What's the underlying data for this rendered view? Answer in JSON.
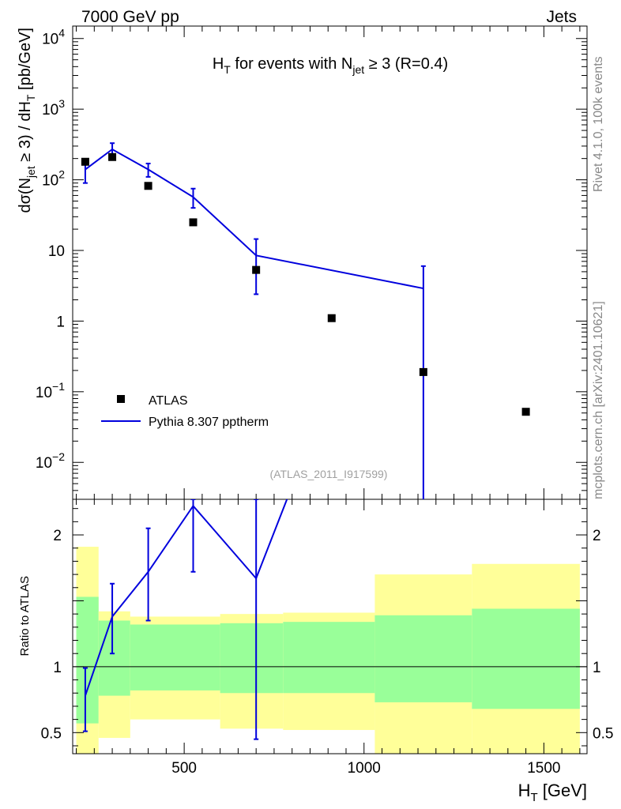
{
  "header": {
    "left": "7000 GeV pp",
    "right": "Jets"
  },
  "side_labels": {
    "rivet": "Rivet 4.1.0,  100k events",
    "mcplots": "mcplots.cern.ch [arXiv:2401.10621]"
  },
  "chart_data": {
    "type": "scatter",
    "title": {
      "main": "H",
      "main_sub": "T",
      "mid": " for events with N",
      "mid_sub": "jet",
      "tail": " ≥ 3 (R=0.4)"
    },
    "xlabel": {
      "main": "H",
      "sub": "T",
      "tail": " [GeV]"
    },
    "ylabel": {
      "a": "dσ(N",
      "a_sub": "jet",
      "b": " ≥ 3) / dH",
      "b_sub": "T",
      "c": " [pb/GeV]"
    },
    "ratio_ylabel": "Ratio to ATLAS",
    "xlim": [
      190,
      1620
    ],
    "ylim": [
      0.003,
      15000
    ],
    "ratio_ylim": [
      0.34,
      2.27
    ],
    "x_ticks": [
      500,
      1000,
      1500
    ],
    "y_ticks": [
      {
        "v": 10000,
        "base": "10",
        "exp": "4"
      },
      {
        "v": 1000,
        "base": "10",
        "exp": "3"
      },
      {
        "v": 100,
        "base": "10",
        "exp": "2"
      },
      {
        "v": 10,
        "base": "10",
        "exp": ""
      },
      {
        "v": 1,
        "base": "1",
        "exp": ""
      },
      {
        "v": 0.1,
        "base": "10",
        "exp": "−1"
      },
      {
        "v": 0.01,
        "base": "10",
        "exp": "−2"
      }
    ],
    "ratio_ticks": [
      {
        "v": 2,
        "label": "2"
      },
      {
        "v": 1,
        "label": "1"
      },
      {
        "v": 0.5,
        "label": "0.5"
      }
    ],
    "watermark": "(ATLAS_2011_I917599)",
    "legend": [
      {
        "name": "ATLAS",
        "kind": "marker"
      },
      {
        "name": "Pythia 8.307 pptherm",
        "kind": "line",
        "color": "#0000dd"
      }
    ],
    "series": [
      {
        "name": "ATLAS",
        "x": [
          225,
          300,
          400,
          525,
          700,
          910,
          1165,
          1450
        ],
        "y": [
          180,
          210,
          82,
          25,
          5.3,
          1.1,
          0.19,
          0.052
        ]
      },
      {
        "name": "Pythia 8.307 pptherm",
        "color": "#0000dd",
        "x": [
          225,
          300,
          400,
          525,
          700,
          1165
        ],
        "y": [
          140,
          270,
          140,
          57,
          8.5,
          2.9
        ],
        "ylo": [
          90,
          220,
          110,
          40,
          2.4,
          0.001
        ],
        "yhi": [
          190,
          330,
          170,
          75,
          14.5,
          6.0
        ]
      }
    ],
    "ratio": {
      "bins": [
        {
          "x0": 200,
          "x1": 262,
          "inner": [
            0.57,
            1.53
          ],
          "outer": [
            0.34,
            1.91
          ]
        },
        {
          "x0": 262,
          "x1": 350,
          "inner": [
            0.78,
            1.35
          ],
          "outer": [
            0.46,
            1.42
          ]
        },
        {
          "x0": 350,
          "x1": 600,
          "inner": [
            0.82,
            1.32
          ],
          "outer": [
            0.6,
            1.38
          ]
        },
        {
          "x0": 600,
          "x1": 775,
          "inner": [
            0.8,
            1.33
          ],
          "outer": [
            0.53,
            1.4
          ]
        },
        {
          "x0": 775,
          "x1": 1030,
          "inner": [
            0.8,
            1.34
          ],
          "outer": [
            0.52,
            1.41
          ]
        },
        {
          "x0": 1030,
          "x1": 1300,
          "inner": [
            0.73,
            1.39
          ],
          "outer": [
            0.34,
            1.7
          ]
        },
        {
          "x0": 1300,
          "x1": 1600,
          "inner": [
            0.68,
            1.44
          ],
          "outer": [
            0.34,
            1.78
          ]
        }
      ],
      "inner_color": "#99ff99",
      "outer_color": "#ffff99",
      "line": {
        "x": [
          225,
          300,
          400,
          525,
          700,
          790
        ],
        "y": [
          0.78,
          1.38,
          1.72,
          2.22,
          1.67,
          2.3
        ],
        "err_x": [
          225,
          300,
          400,
          525,
          700
        ],
        "err_lo": [
          0.51,
          1.1,
          1.35,
          1.72,
          0.45
        ],
        "err_hi": [
          0.99,
          1.63,
          2.05,
          2.27,
          2.27
        ]
      }
    }
  }
}
